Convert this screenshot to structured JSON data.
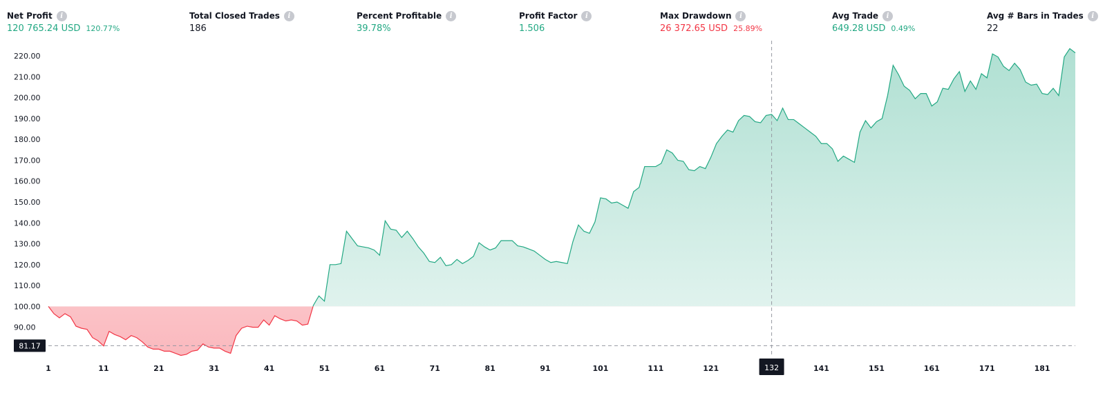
{
  "colors": {
    "positive": "#22a883",
    "negative": "#f23645",
    "neutral": "#131722",
    "crosshair": "#9598a1",
    "tag_bg": "#131722"
  },
  "stats": [
    {
      "key": "net_profit",
      "label": "Net Profit",
      "value": "120 765.24 USD",
      "pct": "120.77%",
      "tone": "positive"
    },
    {
      "key": "total_closed_trades",
      "label": "Total Closed Trades",
      "value": "186",
      "pct": "",
      "tone": "neutral"
    },
    {
      "key": "percent_profitable",
      "label": "Percent Profitable",
      "value": "39.78%",
      "pct": "",
      "tone": "positive"
    },
    {
      "key": "profit_factor",
      "label": "Profit Factor",
      "value": "1.506",
      "pct": "",
      "tone": "positive"
    },
    {
      "key": "max_drawdown",
      "label": "Max Drawdown",
      "value": "26 372.65 USD",
      "pct": "25.89%",
      "tone": "negative"
    },
    {
      "key": "avg_trade",
      "label": "Avg Trade",
      "value": "649.28 USD",
      "pct": "0.49%",
      "tone": "positive"
    },
    {
      "key": "avg_bars",
      "label": "Avg # Bars in Trades",
      "value": "22",
      "pct": "",
      "tone": "neutral"
    }
  ],
  "chart_data": {
    "type": "area",
    "baseline": 100,
    "ylim": [
      75,
      225
    ],
    "xlim": [
      1,
      187
    ],
    "yticks": [
      90,
      100,
      110,
      120,
      130,
      140,
      150,
      160,
      170,
      180,
      190,
      200,
      210,
      220
    ],
    "ytick_labels": [
      "90.00",
      "100.00",
      "110.00",
      "120.00",
      "130.00",
      "140.00",
      "150.00",
      "160.00",
      "170.00",
      "180.00",
      "190.00",
      "200.00",
      "210.00",
      "220.00"
    ],
    "xticks": [
      1,
      11,
      21,
      31,
      41,
      51,
      61,
      71,
      81,
      91,
      101,
      111,
      121,
      131,
      141,
      151,
      161,
      171,
      181
    ],
    "xtick_labels": [
      "1",
      "11",
      "21",
      "31",
      "41",
      "51",
      "61",
      "71",
      "81",
      "91",
      "101",
      "111",
      "121",
      "",
      "141",
      "151",
      "161",
      "171",
      "181"
    ],
    "crosshair": {
      "x": 132,
      "y": 81.17,
      "x_label": "132",
      "y_label": "81.17"
    },
    "grid": false,
    "points": [
      [
        1,
        100
      ],
      [
        2,
        96.5
      ],
      [
        3,
        94.5
      ],
      [
        4,
        96.5
      ],
      [
        5,
        95
      ],
      [
        6,
        90.5
      ],
      [
        7,
        89.5
      ],
      [
        8,
        89
      ],
      [
        9,
        85
      ],
      [
        10,
        83.5
      ],
      [
        11,
        81
      ],
      [
        12,
        88
      ],
      [
        13,
        86.5
      ],
      [
        14,
        85.5
      ],
      [
        15,
        84
      ],
      [
        16,
        86
      ],
      [
        17,
        85
      ],
      [
        18,
        83
      ],
      [
        19,
        80.5
      ],
      [
        20,
        79.5
      ],
      [
        21,
        79.5
      ],
      [
        22,
        78.5
      ],
      [
        23,
        78.5
      ],
      [
        24,
        77.5
      ],
      [
        25,
        76.5
      ],
      [
        26,
        77
      ],
      [
        27,
        78.5
      ],
      [
        28,
        79
      ],
      [
        29,
        82
      ],
      [
        30,
        80.5
      ],
      [
        31,
        80
      ],
      [
        32,
        80
      ],
      [
        33,
        78.5
      ],
      [
        34,
        77.5
      ],
      [
        35,
        86
      ],
      [
        36,
        89.5
      ],
      [
        37,
        90.5
      ],
      [
        38,
        90
      ],
      [
        39,
        90
      ],
      [
        40,
        93.5
      ],
      [
        41,
        91
      ],
      [
        42,
        95.5
      ],
      [
        43,
        94
      ],
      [
        44,
        93
      ],
      [
        45,
        93.5
      ],
      [
        46,
        93
      ],
      [
        47,
        91
      ],
      [
        48,
        91.5
      ],
      [
        49,
        100.5
      ],
      [
        50,
        105
      ],
      [
        51,
        102.5
      ],
      [
        52,
        120
      ],
      [
        53,
        120
      ],
      [
        54,
        120.5
      ],
      [
        55,
        136
      ],
      [
        56,
        132.5
      ],
      [
        57,
        129
      ],
      [
        58,
        128.5
      ],
      [
        59,
        128
      ],
      [
        60,
        127
      ],
      [
        61,
        124.5
      ],
      [
        62,
        141
      ],
      [
        63,
        137
      ],
      [
        64,
        136.5
      ],
      [
        65,
        133
      ],
      [
        66,
        136
      ],
      [
        67,
        132.5
      ],
      [
        68,
        128.5
      ],
      [
        69,
        125.5
      ],
      [
        70,
        121.5
      ],
      [
        71,
        121
      ],
      [
        72,
        123.5
      ],
      [
        73,
        119.5
      ],
      [
        74,
        120
      ],
      [
        75,
        122.5
      ],
      [
        76,
        120.5
      ],
      [
        77,
        122
      ],
      [
        78,
        124
      ],
      [
        79,
        130.5
      ],
      [
        80,
        128.5
      ],
      [
        81,
        127
      ],
      [
        82,
        128
      ],
      [
        83,
        131.5
      ],
      [
        84,
        131.5
      ],
      [
        85,
        131.5
      ],
      [
        86,
        129
      ],
      [
        87,
        128.5
      ],
      [
        88,
        127.5
      ],
      [
        89,
        126.5
      ],
      [
        90,
        124.5
      ],
      [
        91,
        122.5
      ],
      [
        92,
        121
      ],
      [
        93,
        121.5
      ],
      [
        94,
        121
      ],
      [
        95,
        120.5
      ],
      [
        96,
        131
      ],
      [
        97,
        139
      ],
      [
        98,
        136
      ],
      [
        99,
        135
      ],
      [
        100,
        140.5
      ],
      [
        101,
        152
      ],
      [
        102,
        151.5
      ],
      [
        103,
        149.5
      ],
      [
        104,
        150
      ],
      [
        105,
        148.5
      ],
      [
        106,
        147
      ],
      [
        107,
        155
      ],
      [
        108,
        157
      ],
      [
        109,
        167
      ],
      [
        110,
        167
      ],
      [
        111,
        167
      ],
      [
        112,
        168.5
      ],
      [
        113,
        175
      ],
      [
        114,
        173.5
      ],
      [
        115,
        170
      ],
      [
        116,
        169.5
      ],
      [
        117,
        165.5
      ],
      [
        118,
        165
      ],
      [
        119,
        167
      ],
      [
        120,
        166
      ],
      [
        121,
        171.5
      ],
      [
        122,
        178
      ],
      [
        123,
        181.5
      ],
      [
        124,
        184.5
      ],
      [
        125,
        183.5
      ],
      [
        126,
        189
      ],
      [
        127,
        191.5
      ],
      [
        128,
        191
      ],
      [
        129,
        188.5
      ],
      [
        130,
        188
      ],
      [
        131,
        191.5
      ],
      [
        132,
        192
      ],
      [
        133,
        189
      ],
      [
        134,
        195
      ],
      [
        135,
        189.5
      ],
      [
        136,
        189.5
      ],
      [
        137,
        187.5
      ],
      [
        138,
        185.5
      ],
      [
        139,
        183.5
      ],
      [
        140,
        181.5
      ],
      [
        141,
        178
      ],
      [
        142,
        178
      ],
      [
        143,
        175.5
      ],
      [
        144,
        169.5
      ],
      [
        145,
        172
      ],
      [
        146,
        170.5
      ],
      [
        147,
        169
      ],
      [
        148,
        183.5
      ],
      [
        149,
        189
      ],
      [
        150,
        185.5
      ],
      [
        151,
        188.5
      ],
      [
        152,
        190
      ],
      [
        153,
        201
      ],
      [
        154,
        215.5
      ],
      [
        155,
        211
      ],
      [
        156,
        205.5
      ],
      [
        157,
        203.5
      ],
      [
        158,
        199.5
      ],
      [
        159,
        202
      ],
      [
        160,
        202
      ],
      [
        161,
        196
      ],
      [
        162,
        198
      ],
      [
        163,
        204.5
      ],
      [
        164,
        204
      ],
      [
        165,
        209
      ],
      [
        166,
        212.5
      ],
      [
        167,
        203
      ],
      [
        168,
        208
      ],
      [
        169,
        204
      ],
      [
        170,
        211.5
      ],
      [
        171,
        209.5
      ],
      [
        172,
        221
      ],
      [
        173,
        219.5
      ],
      [
        174,
        215
      ],
      [
        175,
        213
      ],
      [
        176,
        216.5
      ],
      [
        177,
        213.5
      ],
      [
        178,
        207.5
      ],
      [
        179,
        206
      ],
      [
        180,
        206.5
      ],
      [
        181,
        202
      ],
      [
        182,
        201.5
      ],
      [
        183,
        204.5
      ],
      [
        184,
        201
      ],
      [
        185,
        219.5
      ],
      [
        186,
        223.5
      ],
      [
        187,
        221.5
      ]
    ]
  }
}
